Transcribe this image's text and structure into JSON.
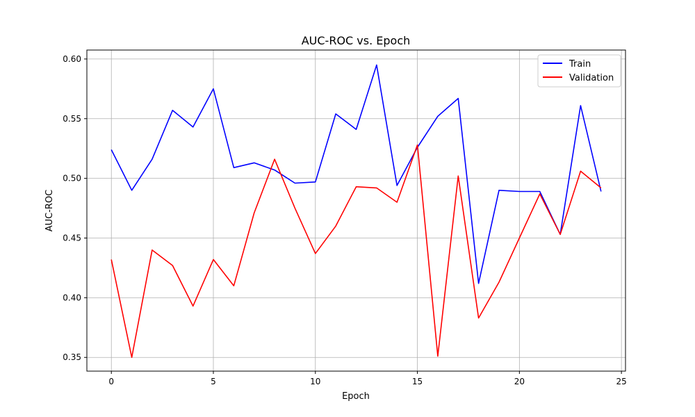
{
  "chart_data": {
    "type": "line",
    "title": "AUC-ROC vs. Epoch",
    "xlabel": "Epoch",
    "ylabel": "AUC-ROC",
    "xlim": [
      -1.2,
      25.2
    ],
    "ylim": [
      0.3385,
      0.6075
    ],
    "xticks": [
      0,
      5,
      10,
      15,
      20,
      25
    ],
    "yticks": [
      0.35,
      0.4,
      0.45,
      0.5,
      0.55,
      0.6
    ],
    "xtick_labels": [
      "0",
      "5",
      "10",
      "15",
      "20",
      "25"
    ],
    "ytick_labels": [
      "0.35",
      "0.40",
      "0.45",
      "0.50",
      "0.55",
      "0.60"
    ],
    "grid": true,
    "legend_position": "top-right",
    "x": [
      0,
      1,
      2,
      3,
      4,
      5,
      6,
      7,
      8,
      9,
      10,
      11,
      12,
      13,
      14,
      15,
      16,
      17,
      18,
      19,
      20,
      21,
      22,
      23,
      24
    ],
    "series": [
      {
        "name": "Train",
        "color": "#0000ff",
        "values": [
          0.524,
          0.49,
          0.516,
          0.557,
          0.543,
          0.575,
          0.509,
          0.513,
          0.507,
          0.496,
          0.497,
          0.554,
          0.541,
          0.595,
          0.494,
          0.526,
          0.552,
          0.567,
          0.412,
          0.49,
          0.489,
          0.489,
          0.453,
          0.561,
          0.489
        ]
      },
      {
        "name": "Validation",
        "color": "#ff0000",
        "values": [
          0.432,
          0.35,
          0.44,
          0.427,
          0.393,
          0.432,
          0.41,
          0.471,
          0.516,
          0.475,
          0.437,
          0.46,
          0.493,
          0.492,
          0.48,
          0.528,
          0.351,
          0.502,
          0.383,
          0.413,
          0.45,
          0.487,
          0.453,
          0.506,
          0.492
        ]
      }
    ]
  }
}
